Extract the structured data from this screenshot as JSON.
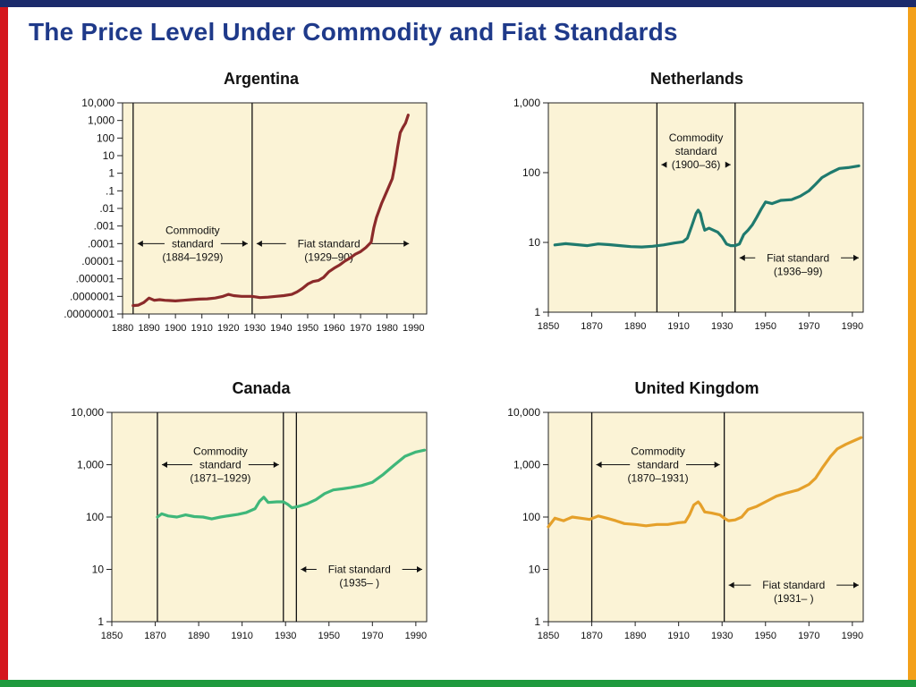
{
  "slide": {
    "title": "The Price Level Under Commodity and Fiat Standards"
  },
  "colors": {
    "plot_bg": "#fbf3d6",
    "argentina": "#8b2a2a",
    "netherlands": "#1f7a6e",
    "canada": "#3fb77a",
    "united_kingdom": "#e5a02a",
    "frame_top": "#1b2a6b",
    "frame_left": "#d4161c",
    "frame_right": "#f3a01a",
    "frame_bottom": "#1f9a3e"
  },
  "chart_data": [
    {
      "id": "argentina",
      "type": "line",
      "title": "Argentina",
      "yscale": "log",
      "xlim": [
        1880,
        1995
      ],
      "ylim": [
        1e-08,
        10000
      ],
      "x_ticks": [
        1880,
        1890,
        1900,
        1910,
        1920,
        1930,
        1940,
        1950,
        1960,
        1970,
        1980,
        1990
      ],
      "y_ticks": [
        {
          "v": 1e-08,
          "label": ".00000001"
        },
        {
          "v": 1e-07,
          "label": ".0000001"
        },
        {
          "v": 1e-06,
          "label": ".000001"
        },
        {
          "v": 1e-05,
          "label": ".00001"
        },
        {
          "v": 0.0001,
          "label": ".0001"
        },
        {
          "v": 0.001,
          "label": ".001"
        },
        {
          "v": 0.01,
          "label": ".01"
        },
        {
          "v": 0.1,
          "label": ".1"
        },
        {
          "v": 1,
          "label": "1"
        },
        {
          "v": 10,
          "label": "10"
        },
        {
          "v": 100,
          "label": "100"
        },
        {
          "v": 1000,
          "label": "1,000"
        },
        {
          "v": 10000,
          "label": "10,000"
        }
      ],
      "vlines": [
        1884,
        1929
      ],
      "annotations": [
        {
          "lines": [
            "Commodity",
            "standard",
            "(1884–1929)"
          ],
          "from": 1884,
          "to": 1929,
          "cx": 1906.5,
          "y": 0.0001
        },
        {
          "lines": [
            "Fiat standard",
            "(1929–90)"
          ],
          "from": 1929,
          "to": 1990,
          "cx": 1958,
          "y": 0.0001
        }
      ],
      "series": [
        {
          "color": "#8b2a2a",
          "points": [
            [
              1884,
              3e-08
            ],
            [
              1886,
              3.2e-08
            ],
            [
              1888,
              4.5e-08
            ],
            [
              1890,
              8e-08
            ],
            [
              1892,
              6e-08
            ],
            [
              1894,
              6.5e-08
            ],
            [
              1896,
              6e-08
            ],
            [
              1898,
              5.8e-08
            ],
            [
              1900,
              5.5e-08
            ],
            [
              1903,
              6e-08
            ],
            [
              1906,
              6.5e-08
            ],
            [
              1909,
              7e-08
            ],
            [
              1912,
              7.2e-08
            ],
            [
              1915,
              8e-08
            ],
            [
              1918,
              1e-07
            ],
            [
              1920,
              1.3e-07
            ],
            [
              1922,
              1.1e-07
            ],
            [
              1925,
              1e-07
            ],
            [
              1929,
              1e-07
            ],
            [
              1932,
              8.5e-08
            ],
            [
              1935,
              9e-08
            ],
            [
              1938,
              1e-07
            ],
            [
              1941,
              1.1e-07
            ],
            [
              1944,
              1.3e-07
            ],
            [
              1946,
              1.8e-07
            ],
            [
              1948,
              2.8e-07
            ],
            [
              1950,
              5e-07
            ],
            [
              1952,
              7e-07
            ],
            [
              1954,
              8e-07
            ],
            [
              1956,
              1.2e-06
            ],
            [
              1958,
              2.5e-06
            ],
            [
              1960,
              4e-06
            ],
            [
              1962,
              6e-06
            ],
            [
              1964,
              1e-05
            ],
            [
              1966,
              1.5e-05
            ],
            [
              1968,
              2.5e-05
            ],
            [
              1970,
              3.5e-05
            ],
            [
              1972,
              6e-05
            ],
            [
              1974,
              0.00012
            ],
            [
              1975,
              0.0008
            ],
            [
              1976,
              0.003
            ],
            [
              1978,
              0.02
            ],
            [
              1980,
              0.1
            ],
            [
              1982,
              0.5
            ],
            [
              1983,
              3
            ],
            [
              1984,
              30
            ],
            [
              1985,
              200
            ],
            [
              1986,
              400
            ],
            [
              1987,
              700
            ],
            [
              1988,
              2000
            ]
          ]
        }
      ]
    },
    {
      "id": "netherlands",
      "type": "line",
      "title": "Netherlands",
      "yscale": "log",
      "xlim": [
        1850,
        1995
      ],
      "ylim": [
        1,
        1000
      ],
      "x_ticks": [
        1850,
        1870,
        1890,
        1910,
        1930,
        1950,
        1970,
        1990
      ],
      "y_ticks": [
        {
          "v": 1,
          "label": "1"
        },
        {
          "v": 10,
          "label": "10"
        },
        {
          "v": 100,
          "label": "100"
        },
        {
          "v": 1000,
          "label": "1,000"
        }
      ],
      "vlines": [
        1900,
        1936
      ],
      "annotations": [
        {
          "lines": [
            "Commodity",
            "standard",
            "(1900–36)"
          ],
          "from": 1900,
          "to": 1936,
          "cx": 1918,
          "y": 130,
          "arrow_line": 2
        },
        {
          "lines": [
            "Fiat standard",
            "(1936–99)"
          ],
          "from": 1936,
          "to": 1995,
          "cx": 1965,
          "y": 6
        }
      ],
      "series": [
        {
          "color": "#1f7a6e",
          "points": [
            [
              1853,
              9.2
            ],
            [
              1858,
              9.6
            ],
            [
              1863,
              9.3
            ],
            [
              1868,
              9.0
            ],
            [
              1873,
              9.5
            ],
            [
              1878,
              9.3
            ],
            [
              1883,
              9.0
            ],
            [
              1888,
              8.7
            ],
            [
              1893,
              8.6
            ],
            [
              1898,
              8.8
            ],
            [
              1903,
              9.2
            ],
            [
              1908,
              9.8
            ],
            [
              1912,
              10.2
            ],
            [
              1914,
              11.5
            ],
            [
              1916,
              17
            ],
            [
              1918,
              26
            ],
            [
              1919,
              29
            ],
            [
              1920,
              26
            ],
            [
              1921,
              19
            ],
            [
              1922,
              15
            ],
            [
              1924,
              16
            ],
            [
              1926,
              15
            ],
            [
              1928,
              14
            ],
            [
              1930,
              12
            ],
            [
              1932,
              9.5
            ],
            [
              1934,
              9.0
            ],
            [
              1936,
              9.0
            ],
            [
              1938,
              9.5
            ],
            [
              1940,
              13
            ],
            [
              1942,
              15
            ],
            [
              1944,
              18
            ],
            [
              1946,
              23
            ],
            [
              1948,
              30
            ],
            [
              1950,
              38
            ],
            [
              1953,
              36
            ],
            [
              1957,
              40
            ],
            [
              1962,
              41
            ],
            [
              1966,
              46
            ],
            [
              1970,
              55
            ],
            [
              1973,
              68
            ],
            [
              1976,
              85
            ],
            [
              1980,
              100
            ],
            [
              1984,
              115
            ],
            [
              1988,
              118
            ],
            [
              1993,
              125
            ]
          ]
        }
      ]
    },
    {
      "id": "canada",
      "type": "line",
      "title": "Canada",
      "yscale": "log",
      "xlim": [
        1850,
        1995
      ],
      "ylim": [
        1,
        10000
      ],
      "x_ticks": [
        1850,
        1870,
        1890,
        1910,
        1930,
        1950,
        1970,
        1990
      ],
      "y_ticks": [
        {
          "v": 1,
          "label": "1"
        },
        {
          "v": 10,
          "label": "10"
        },
        {
          "v": 100,
          "label": "100"
        },
        {
          "v": 1000,
          "label": "1,000"
        },
        {
          "v": 10000,
          "label": "10,000"
        }
      ],
      "vlines": [
        1871,
        1929,
        1935
      ],
      "annotations": [
        {
          "lines": [
            "Commodity",
            "standard",
            "(1871–1929)"
          ],
          "from": 1871,
          "to": 1929,
          "cx": 1900,
          "y": 1000
        },
        {
          "lines": [
            "Fiat standard",
            "(1935– )"
          ],
          "from": 1935,
          "to": 1995,
          "cx": 1964,
          "y": 10
        }
      ],
      "series": [
        {
          "color": "#3fb77a",
          "points": [
            [
              1871,
              100
            ],
            [
              1873,
              115
            ],
            [
              1876,
              105
            ],
            [
              1880,
              100
            ],
            [
              1884,
              110
            ],
            [
              1888,
              102
            ],
            [
              1892,
              100
            ],
            [
              1896,
              92
            ],
            [
              1900,
              100
            ],
            [
              1904,
              106
            ],
            [
              1908,
              112
            ],
            [
              1912,
              122
            ],
            [
              1916,
              145
            ],
            [
              1918,
              200
            ],
            [
              1920,
              240
            ],
            [
              1922,
              190
            ],
            [
              1926,
              195
            ],
            [
              1929,
              195
            ],
            [
              1931,
              175
            ],
            [
              1933,
              150
            ],
            [
              1936,
              160
            ],
            [
              1940,
              180
            ],
            [
              1944,
              215
            ],
            [
              1948,
              280
            ],
            [
              1952,
              330
            ],
            [
              1956,
              345
            ],
            [
              1960,
              365
            ],
            [
              1965,
              400
            ],
            [
              1970,
              460
            ],
            [
              1975,
              650
            ],
            [
              1980,
              980
            ],
            [
              1985,
              1450
            ],
            [
              1990,
              1750
            ],
            [
              1994,
              1900
            ]
          ]
        }
      ]
    },
    {
      "id": "united_kingdom",
      "type": "line",
      "title": "United Kingdom",
      "yscale": "log",
      "xlim": [
        1850,
        1995
      ],
      "ylim": [
        1,
        10000
      ],
      "x_ticks": [
        1850,
        1870,
        1890,
        1910,
        1930,
        1950,
        1970,
        1990
      ],
      "y_ticks": [
        {
          "v": 1,
          "label": "1"
        },
        {
          "v": 10,
          "label": "10"
        },
        {
          "v": 100,
          "label": "100"
        },
        {
          "v": 1000,
          "label": "1,000"
        },
        {
          "v": 10000,
          "label": "10,000"
        }
      ],
      "vlines": [
        1870,
        1931
      ],
      "annotations": [
        {
          "lines": [
            "Commodity",
            "standard",
            "(1870–1931)"
          ],
          "from": 1870,
          "to": 1931,
          "cx": 1900.5,
          "y": 1000
        },
        {
          "lines": [
            "Fiat standard",
            "(1931– )"
          ],
          "from": 1931,
          "to": 1995,
          "cx": 1963,
          "y": 5
        }
      ],
      "series": [
        {
          "color": "#e5a02a",
          "points": [
            [
              1850,
              65
            ],
            [
              1853,
              95
            ],
            [
              1857,
              85
            ],
            [
              1861,
              100
            ],
            [
              1865,
              95
            ],
            [
              1869,
              90
            ],
            [
              1873,
              105
            ],
            [
              1877,
              95
            ],
            [
              1881,
              85
            ],
            [
              1885,
              75
            ],
            [
              1890,
              72
            ],
            [
              1895,
              68
            ],
            [
              1900,
              72
            ],
            [
              1905,
              72
            ],
            [
              1910,
              78
            ],
            [
              1913,
              80
            ],
            [
              1915,
              110
            ],
            [
              1917,
              170
            ],
            [
              1919,
              195
            ],
            [
              1920,
              175
            ],
            [
              1922,
              125
            ],
            [
              1925,
              120
            ],
            [
              1929,
              110
            ],
            [
              1931,
              95
            ],
            [
              1933,
              85
            ],
            [
              1936,
              88
            ],
            [
              1939,
              100
            ],
            [
              1942,
              140
            ],
            [
              1946,
              160
            ],
            [
              1950,
              195
            ],
            [
              1955,
              250
            ],
            [
              1960,
              290
            ],
            [
              1965,
              330
            ],
            [
              1970,
              420
            ],
            [
              1973,
              550
            ],
            [
              1976,
              850
            ],
            [
              1980,
              1450
            ],
            [
              1983,
              2000
            ],
            [
              1987,
              2450
            ],
            [
              1991,
              2900
            ],
            [
              1994,
              3300
            ]
          ]
        }
      ]
    }
  ]
}
